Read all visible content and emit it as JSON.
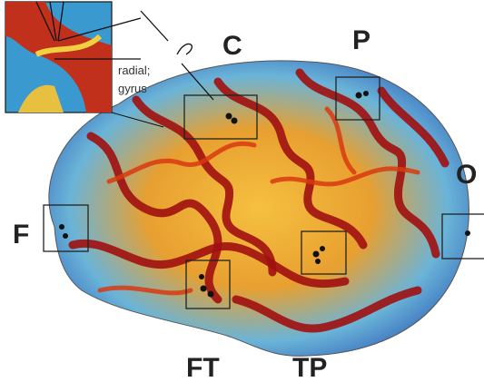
{
  "regions": [
    {
      "label": "C"
    },
    {
      "label": "P"
    },
    {
      "label": "O"
    },
    {
      "label": "F"
    },
    {
      "label": "FT"
    },
    {
      "label": "TP"
    }
  ],
  "inset": {
    "caption": [
      "radial;",
      "gyrus"
    ]
  }
}
